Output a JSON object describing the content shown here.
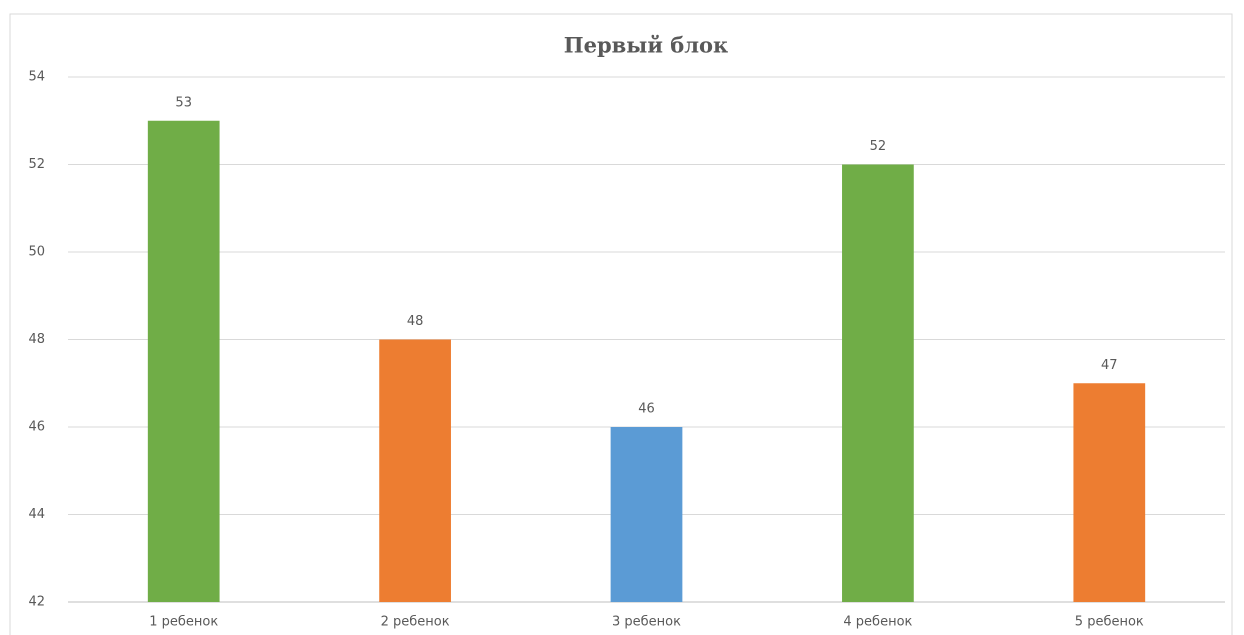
{
  "chart_data": {
    "type": "bar",
    "title": "Первый блок",
    "categories": [
      "1 ребенок",
      "2 ребенок",
      "3 ребенок",
      "4 ребенок",
      "5 ребенок"
    ],
    "values": [
      53,
      48,
      46,
      52,
      47
    ],
    "colors": [
      "#70ad47",
      "#ed7d31",
      "#5b9bd5",
      "#70ad47",
      "#ed7d31"
    ],
    "ylim": [
      42,
      54
    ],
    "yticks": [
      42,
      44,
      46,
      48,
      50,
      52,
      54
    ],
    "grid": true,
    "data_labels": true
  }
}
